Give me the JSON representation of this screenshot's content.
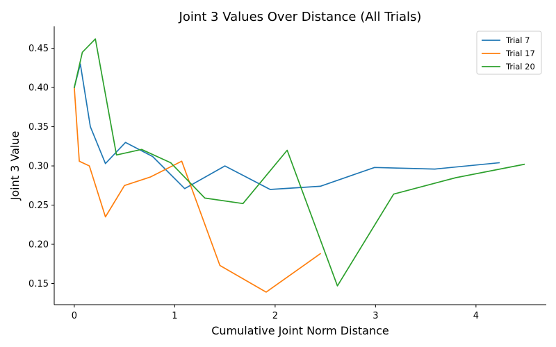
{
  "chart_data": {
    "type": "line",
    "title": "Joint 3 Values Over Distance (All Trials)",
    "xlabel": "Cumulative Joint Norm Distance",
    "ylabel": "Joint 3 Value",
    "xlim": [
      -0.2,
      4.7
    ],
    "ylim": [
      0.123,
      0.478
    ],
    "xticks": [
      0,
      1,
      2,
      3,
      4
    ],
    "yticks": [
      0.15,
      0.2,
      0.25,
      0.3,
      0.35,
      0.4,
      0.45
    ],
    "grid": false,
    "legend_position": "top-right",
    "series": [
      {
        "name": "Trial 7",
        "color": "#1f77b4",
        "x": [
          0,
          0.06,
          0.16,
          0.31,
          0.51,
          0.78,
          1.1,
          1.5,
          1.95,
          2.45,
          2.99,
          3.59,
          4.23
        ],
        "y": [
          0.4,
          0.43,
          0.35,
          0.303,
          0.33,
          0.312,
          0.271,
          0.3,
          0.27,
          0.274,
          0.298,
          0.296,
          0.304
        ]
      },
      {
        "name": "Trial 17",
        "color": "#ff7f0e",
        "x": [
          0,
          0.05,
          0.15,
          0.31,
          0.5,
          0.76,
          1.07,
          1.45,
          1.91,
          2.45
        ],
        "y": [
          0.4,
          0.306,
          0.3,
          0.235,
          0.275,
          0.286,
          0.306,
          0.173,
          0.139,
          0.188
        ]
      },
      {
        "name": "Trial 20",
        "color": "#2ca02c",
        "x": [
          0,
          0.08,
          0.21,
          0.42,
          0.67,
          0.96,
          1.3,
          1.68,
          2.12,
          2.62,
          3.18,
          3.8,
          4.48
        ],
        "y": [
          0.4,
          0.445,
          0.462,
          0.314,
          0.321,
          0.304,
          0.259,
          0.252,
          0.32,
          0.147,
          0.264,
          0.285,
          0.302
        ]
      }
    ]
  }
}
